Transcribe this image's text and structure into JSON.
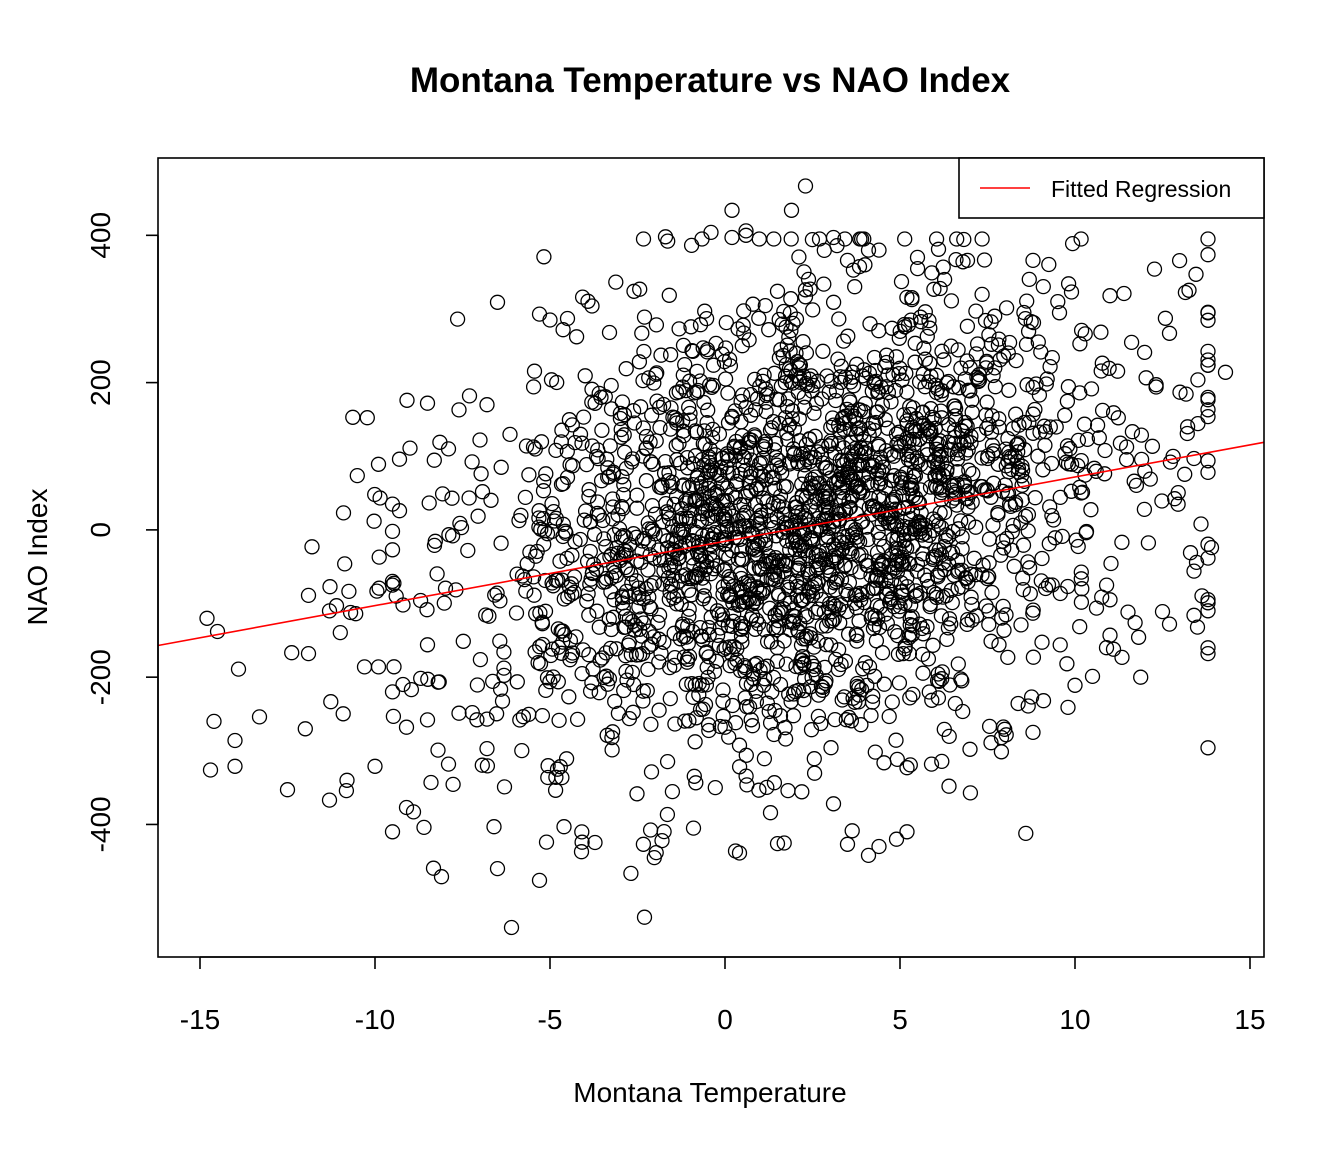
{
  "chart_data": {
    "type": "scatter",
    "title": "Montana Temperature vs NAO Index",
    "xlabel": "Montana Temperature",
    "ylabel": "NAO Index",
    "xlim": [
      -16.2,
      15.4
    ],
    "ylim": [
      -580,
      505
    ],
    "x_ticks": [
      -15,
      -10,
      -5,
      0,
      5,
      10,
      15
    ],
    "y_ticks": [
      -400,
      -200,
      0,
      200,
      400
    ],
    "grid": false,
    "legend": {
      "position": "top-right",
      "entries": [
        {
          "label": "Fitted Regression",
          "color": "#ff0000"
        }
      ]
    },
    "fit_line": {
      "x": [
        -16.2,
        15.4
      ],
      "y": [
        -157,
        119
      ],
      "color": "#ff0000"
    },
    "marker_color": "#000000",
    "n_points": 2600,
    "points": [
      [
        -14.8,
        -120
      ],
      [
        -14.5,
        -138
      ],
      [
        -13.9,
        -189
      ],
      [
        -14.6,
        -260
      ],
      [
        -13.3,
        -254
      ],
      [
        -14.0,
        -286
      ],
      [
        -14.7,
        -326
      ],
      [
        -14.0,
        -321
      ],
      [
        -11.8,
        -23
      ],
      [
        -11.9,
        -89
      ],
      [
        -11.3,
        -110
      ],
      [
        -11.1,
        -103
      ],
      [
        -11.9,
        -168
      ],
      [
        -10.9,
        23
      ],
      [
        -9.9,
        89
      ],
      [
        -10.3,
        -186
      ],
      [
        -9.9,
        -186
      ],
      [
        -10.0,
        -321
      ],
      [
        -10.8,
        -340
      ],
      [
        -11.3,
        -367
      ],
      [
        -9.5,
        35
      ],
      [
        -9.5,
        -2
      ],
      [
        -9.5,
        -27
      ],
      [
        -9.5,
        -70
      ],
      [
        -9.5,
        -75
      ],
      [
        -9.2,
        -102
      ],
      [
        -9.2,
        -210
      ],
      [
        -9.5,
        -220
      ],
      [
        -9.1,
        -268
      ],
      [
        -9.1,
        -377
      ],
      [
        -9.5,
        -410
      ],
      [
        -8.9,
        -383
      ],
      [
        -9.0,
        111
      ],
      [
        -9.3,
        96
      ],
      [
        -9.3,
        26
      ],
      [
        -8.5,
        172
      ],
      [
        -8.5,
        -258
      ],
      [
        -8.5,
        -156
      ],
      [
        -8.6,
        -404
      ],
      [
        -8.1,
        -471
      ],
      [
        -7.9,
        110
      ],
      [
        -7.8,
        43
      ],
      [
        -7.6,
        163
      ],
      [
        -7.0,
        122
      ],
      [
        -6.5,
        309
      ],
      [
        -6.8,
        170
      ],
      [
        -7.3,
        182
      ],
      [
        -6.5,
        -460
      ],
      [
        -6.8,
        -297
      ],
      [
        -6.6,
        -403
      ],
      [
        -6.1,
        -540
      ],
      [
        -5.3,
        -476
      ],
      [
        -5.3,
        293
      ],
      [
        -5.0,
        285
      ],
      [
        -4.5,
        287
      ],
      [
        -3.8,
        304
      ],
      [
        -2.6,
        324
      ],
      [
        -3.3,
        268
      ],
      [
        -2.3,
        289
      ],
      [
        -1.7,
        398
      ],
      [
        -0.4,
        404
      ],
      [
        0.2,
        434
      ],
      [
        0.6,
        400
      ],
      [
        0.6,
        406
      ],
      [
        0.2,
        397
      ],
      [
        1.9,
        434
      ],
      [
        2.3,
        467
      ],
      [
        3.1,
        397
      ],
      [
        3.2,
        386
      ],
      [
        3.5,
        366
      ],
      [
        4.1,
        380
      ],
      [
        4.4,
        380
      ],
      [
        5.5,
        370
      ],
      [
        6.1,
        381
      ],
      [
        6.6,
        367
      ],
      [
        8.8,
        366
      ],
      [
        6.8,
        364
      ],
      [
        1.5,
        324
      ],
      [
        2.3,
        326
      ],
      [
        9.9,
        323
      ],
      [
        11.0,
        318
      ],
      [
        11.4,
        321
      ],
      [
        12.7,
        267
      ],
      [
        13.0,
        187
      ],
      [
        14.3,
        214
      ],
      [
        13.4,
        97
      ],
      [
        13.9,
        -24
      ],
      [
        13.6,
        8
      ],
      [
        13.3,
        -31
      ],
      [
        13.4,
        -56
      ],
      [
        13.4,
        -116
      ],
      [
        12.7,
        -128
      ],
      [
        13.5,
        -132
      ],
      [
        12.5,
        -111
      ],
      [
        11.0,
        -95
      ],
      [
        11.0,
        -143
      ],
      [
        11.1,
        -162
      ],
      [
        10.0,
        -211
      ],
      [
        9.8,
        -241
      ],
      [
        10.5,
        -199
      ],
      [
        9.1,
        -232
      ],
      [
        8.8,
        -275
      ],
      [
        7.9,
        -282
      ],
      [
        7.6,
        -289
      ],
      [
        7.0,
        -298
      ],
      [
        6.4,
        -348
      ],
      [
        5.9,
        -318
      ],
      [
        5.2,
        -323
      ],
      [
        5.2,
        -410
      ],
      [
        4.9,
        -420
      ],
      [
        4.1,
        -442
      ],
      [
        4.4,
        -430
      ],
      [
        3.5,
        -427
      ],
      [
        3.1,
        -372
      ],
      [
        1.8,
        -354
      ],
      [
        1.3,
        -384
      ],
      [
        1.5,
        -426
      ],
      [
        0.3,
        -436
      ],
      [
        -0.9,
        -405
      ],
      [
        -1.8,
        -422
      ],
      [
        -2.3,
        -526
      ],
      [
        -4.1,
        -437
      ],
      [
        -4.6,
        -403
      ],
      [
        -5.1,
        -424
      ],
      [
        -6.3,
        -349
      ],
      [
        -6.8,
        -257
      ],
      [
        -7.6,
        -249
      ],
      [
        -8.2,
        -299
      ],
      [
        -7.9,
        -318
      ],
      [
        -8.4,
        -343
      ]
    ]
  }
}
